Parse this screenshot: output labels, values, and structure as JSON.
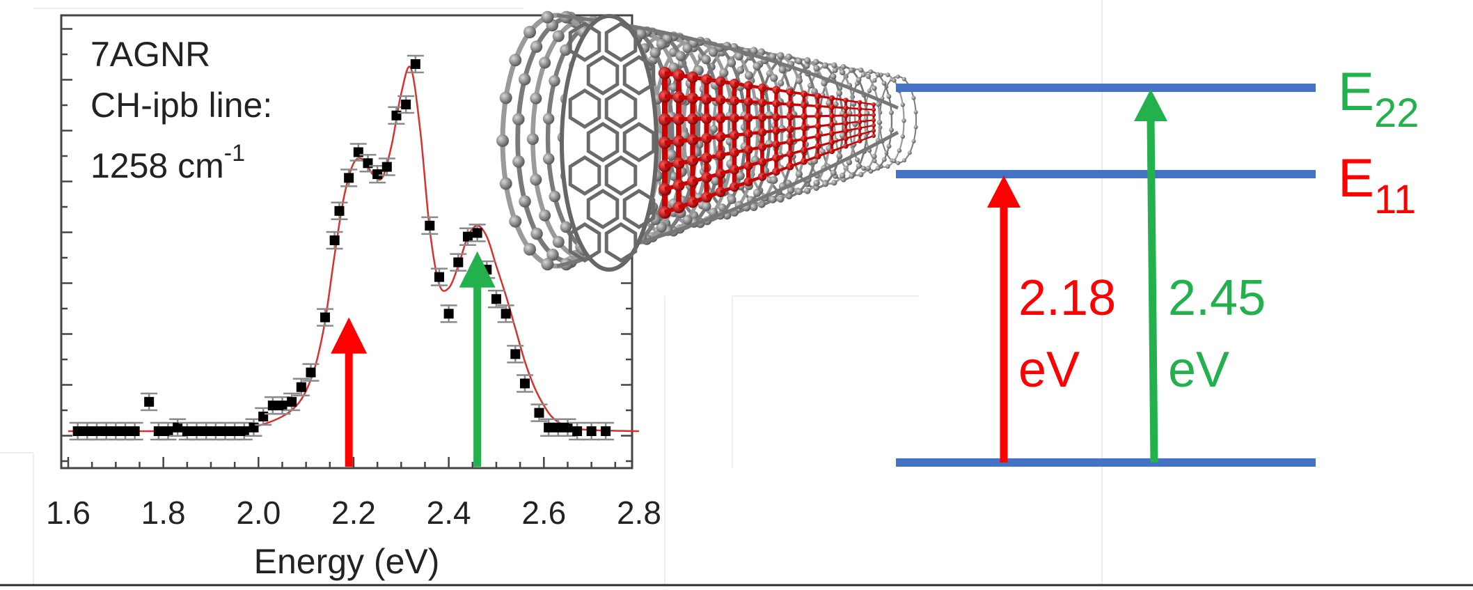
{
  "panel": {
    "sample": "7AGNR",
    "line_label": "CH-ipb line:",
    "wavenumber": "1258 cm",
    "wavenumber_exp": "-1"
  },
  "chart_data": {
    "type": "scatter",
    "title": "",
    "xlabel": "Energy (eV)",
    "ylabel": "",
    "xlim": [
      1.6,
      2.8
    ],
    "ylim": [
      0,
      1.0
    ],
    "xticks": [
      "1.6",
      "1.8",
      "2.0",
      "2.2",
      "2.4",
      "2.6",
      "2.8"
    ],
    "grid": false,
    "series": [
      {
        "kind": "points",
        "color": "#000000",
        "x": [
          1.62,
          1.64,
          1.66,
          1.68,
          1.7,
          1.72,
          1.74,
          1.77,
          1.79,
          1.81,
          1.83,
          1.85,
          1.87,
          1.89,
          1.91,
          1.93,
          1.95,
          1.97,
          1.99,
          2.01,
          2.03,
          2.05,
          2.07,
          2.09,
          2.11,
          2.14,
          2.16,
          2.17,
          2.19,
          2.21,
          2.23,
          2.25,
          2.27,
          2.29,
          2.31,
          2.33,
          2.36,
          2.38,
          2.4,
          2.42,
          2.44,
          2.46,
          2.48,
          2.5,
          2.52,
          2.54,
          2.56,
          2.59,
          2.61,
          2.63,
          2.65,
          2.67,
          2.7,
          2.73
        ],
        "y": [
          0.0,
          0.0,
          0.0,
          0.0,
          0.0,
          0.0,
          0.0,
          0.08,
          0.0,
          0.0,
          0.01,
          0.0,
          0.0,
          0.0,
          0.0,
          0.0,
          0.0,
          0.0,
          0.01,
          0.04,
          0.07,
          0.07,
          0.08,
          0.12,
          0.16,
          0.31,
          0.52,
          0.6,
          0.69,
          0.76,
          0.73,
          0.7,
          0.72,
          0.86,
          0.89,
          1.0,
          0.56,
          0.42,
          0.32,
          0.46,
          0.53,
          0.54,
          0.44,
          0.36,
          0.32,
          0.21,
          0.13,
          0.05,
          0.01,
          0.01,
          0.01,
          0.0,
          0.0,
          0.0
        ]
      },
      {
        "kind": "fit",
        "color": "#d9302c",
        "x": [
          1.6,
          1.7,
          1.8,
          1.9,
          1.95,
          2.0,
          2.05,
          2.08,
          2.1,
          2.12,
          2.14,
          2.16,
          2.18,
          2.2,
          2.22,
          2.24,
          2.26,
          2.28,
          2.3,
          2.32,
          2.34,
          2.36,
          2.38,
          2.4,
          2.42,
          2.44,
          2.46,
          2.48,
          2.5,
          2.52,
          2.54,
          2.56,
          2.58,
          2.6,
          2.62,
          2.65,
          2.7,
          2.8
        ],
        "y": [
          0.0,
          0.0,
          0.0,
          0.0,
          0.005,
          0.015,
          0.04,
          0.07,
          0.11,
          0.18,
          0.3,
          0.48,
          0.64,
          0.73,
          0.74,
          0.7,
          0.69,
          0.78,
          0.92,
          0.99,
          0.82,
          0.55,
          0.4,
          0.39,
          0.45,
          0.53,
          0.56,
          0.53,
          0.45,
          0.37,
          0.28,
          0.19,
          0.12,
          0.07,
          0.035,
          0.012,
          0.003,
          0.0
        ]
      }
    ],
    "arrows": [
      {
        "x": 2.19,
        "y_top": 0.31,
        "color": "#ff0000"
      },
      {
        "x": 2.46,
        "y_top": 0.49,
        "color": "#22b14c"
      }
    ]
  },
  "energy_diagram": {
    "levels": [
      {
        "label": "E",
        "sub": "22",
        "color": "#22b14c"
      },
      {
        "label": "E",
        "sub": "11",
        "color": "#ff0000"
      },
      {
        "label": "",
        "sub": "",
        "color": "#4472c4"
      }
    ],
    "transitions": [
      {
        "value": "2.18",
        "unit": "eV",
        "color": "#ff0000"
      },
      {
        "value": "2.45",
        "unit": "eV",
        "color": "#22b14c"
      }
    ],
    "level_color": "#4472c4"
  },
  "colors": {
    "red": "#ff0000",
    "green": "#22b14c",
    "blue": "#4472c4",
    "atom_gray": "#8a8a8a",
    "atom_red": "#cc0000"
  }
}
